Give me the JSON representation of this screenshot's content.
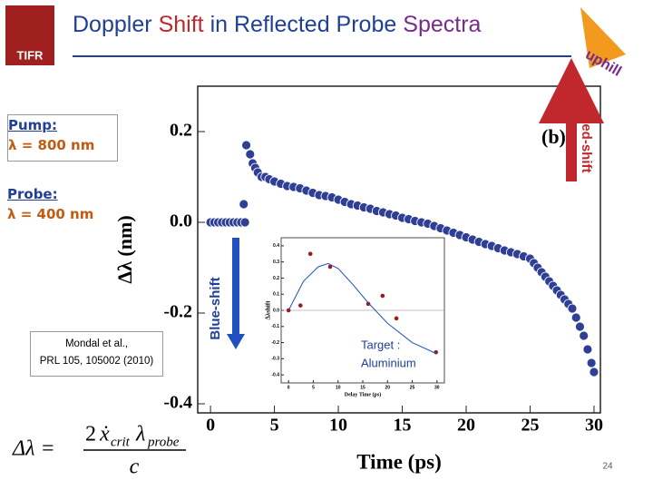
{
  "header": {
    "title": [
      {
        "text": "Doppler",
        "color": "#1f3f99"
      },
      {
        "text": "Shift",
        "color": "#c0282d"
      },
      {
        "text": "in Reflected Probe",
        "color": "#1f3f99"
      },
      {
        "text": "Spectra",
        "color": "#7a2a8c"
      }
    ]
  },
  "logos": {
    "left": "TIFR",
    "right": "uphill"
  },
  "notes": {
    "pump": {
      "label": "Pump:",
      "value": "λ = 800 nm"
    },
    "probe": {
      "label": "Probe:",
      "value": "λ = 400 nm"
    },
    "reference": [
      "Mondal et al.,",
      "PRL 105, 105002 (2010)"
    ],
    "red_shift": "Red-shift",
    "blue_shift": "Blue-shift",
    "target": [
      "Target :",
      "Aluminium"
    ]
  },
  "formula": {
    "lhs": "Δλ =",
    "factor": "2",
    "velocity": "ẋ",
    "velocity_sub": "crit",
    "wavelength": "λ",
    "wavelength_sub": "probe",
    "denominator": "c"
  },
  "page_number": "24",
  "chart_data": [
    {
      "type": "scatter",
      "x_label": "Time (ps)",
      "y_label": "Δλ (nm)",
      "panel_label": "(b)",
      "xlim": [
        -1,
        30.5
      ],
      "ylim": [
        -0.42,
        0.3
      ],
      "xticks": [
        0,
        5,
        10,
        15,
        20,
        25,
        30
      ],
      "yticks": [
        0.2,
        {
          "value": 0,
          "label": "0.0"
        },
        -0.2,
        -0.4
      ],
      "grid": false,
      "series": [
        {
          "color": "#2f3f96",
          "marker": "dot",
          "x": [
            0,
            0.3,
            0.6,
            0.9,
            1.2,
            1.5,
            1.8,
            2.1,
            2.4,
            2.7,
            2.6,
            2.8,
            3.1,
            3.3,
            3.5,
            3.7,
            4,
            4.3,
            4.6,
            5,
            5.5,
            6,
            6.5,
            7,
            7.5,
            8,
            8.5,
            9,
            9.5,
            10,
            10.5,
            11,
            11.5,
            12,
            12.5,
            13,
            13.5,
            14,
            14.5,
            15,
            15.5,
            16,
            16.5,
            17,
            17.5,
            18,
            18.5,
            19,
            19.5,
            20,
            20.5,
            21,
            21.5,
            22,
            22.5,
            23,
            23.5,
            24,
            24.5,
            25,
            25.3,
            25.6,
            25.9,
            26.2,
            26.5,
            26.8,
            27.1,
            27.4,
            27.7,
            28,
            28.3,
            28.6,
            28.9,
            29.2,
            29.5,
            29.8,
            30
          ],
          "values": [
            0,
            0,
            0,
            0,
            0,
            0,
            0,
            0,
            0,
            0,
            0.04,
            0.17,
            0.15,
            0.13,
            0.12,
            0.11,
            0.1,
            0.1,
            0.095,
            0.09,
            0.085,
            0.08,
            0.078,
            0.075,
            0.07,
            0.065,
            0.06,
            0.058,
            0.055,
            0.05,
            0.045,
            0.04,
            0.037,
            0.033,
            0.03,
            0.025,
            0.022,
            0.018,
            0.015,
            0.01,
            0.007,
            0.003,
            0,
            -0.003,
            -0.008,
            -0.013,
            -0.018,
            -0.023,
            -0.028,
            -0.033,
            -0.038,
            -0.043,
            -0.048,
            -0.052,
            -0.057,
            -0.062,
            -0.066,
            -0.07,
            -0.075,
            -0.08,
            -0.09,
            -0.1,
            -0.11,
            -0.12,
            -0.13,
            -0.14,
            -0.15,
            -0.16,
            -0.17,
            -0.18,
            -0.19,
            -0.21,
            -0.23,
            -0.25,
            -0.28,
            -0.31,
            -0.33
          ]
        }
      ]
    },
    {
      "type": "scatter",
      "x_label": "Delay Time (ps)",
      "y_label": "Δλshift",
      "xlim": [
        -1.5,
        31.5
      ],
      "ylim": [
        -0.45,
        0.45
      ],
      "xticks": [
        0,
        5,
        10,
        15,
        20,
        25,
        30
      ],
      "yticks": [
        0.4,
        0.3,
        0.2,
        0.1,
        {
          "value": 0,
          "label": "0.0"
        },
        -0.1,
        -0.2,
        -0.3,
        -0.4
      ],
      "grid": false,
      "series": [
        {
          "color": "#9b1b1b",
          "marker": "dot",
          "x": [
            0,
            2.4,
            4.4,
            8.4,
            16.1,
            19,
            21.8,
            29.8
          ],
          "values": [
            0,
            0.03,
            0.35,
            0.27,
            0.04,
            0.09,
            -0.05,
            -0.26
          ]
        },
        {
          "color": "#2050c0",
          "marker": "line",
          "x": [
            0,
            3,
            6,
            8,
            10,
            13,
            16,
            20,
            25,
            30
          ],
          "values": [
            0,
            0.18,
            0.27,
            0.29,
            0.26,
            0.16,
            0.05,
            -0.08,
            -0.2,
            -0.27
          ]
        }
      ]
    }
  ]
}
